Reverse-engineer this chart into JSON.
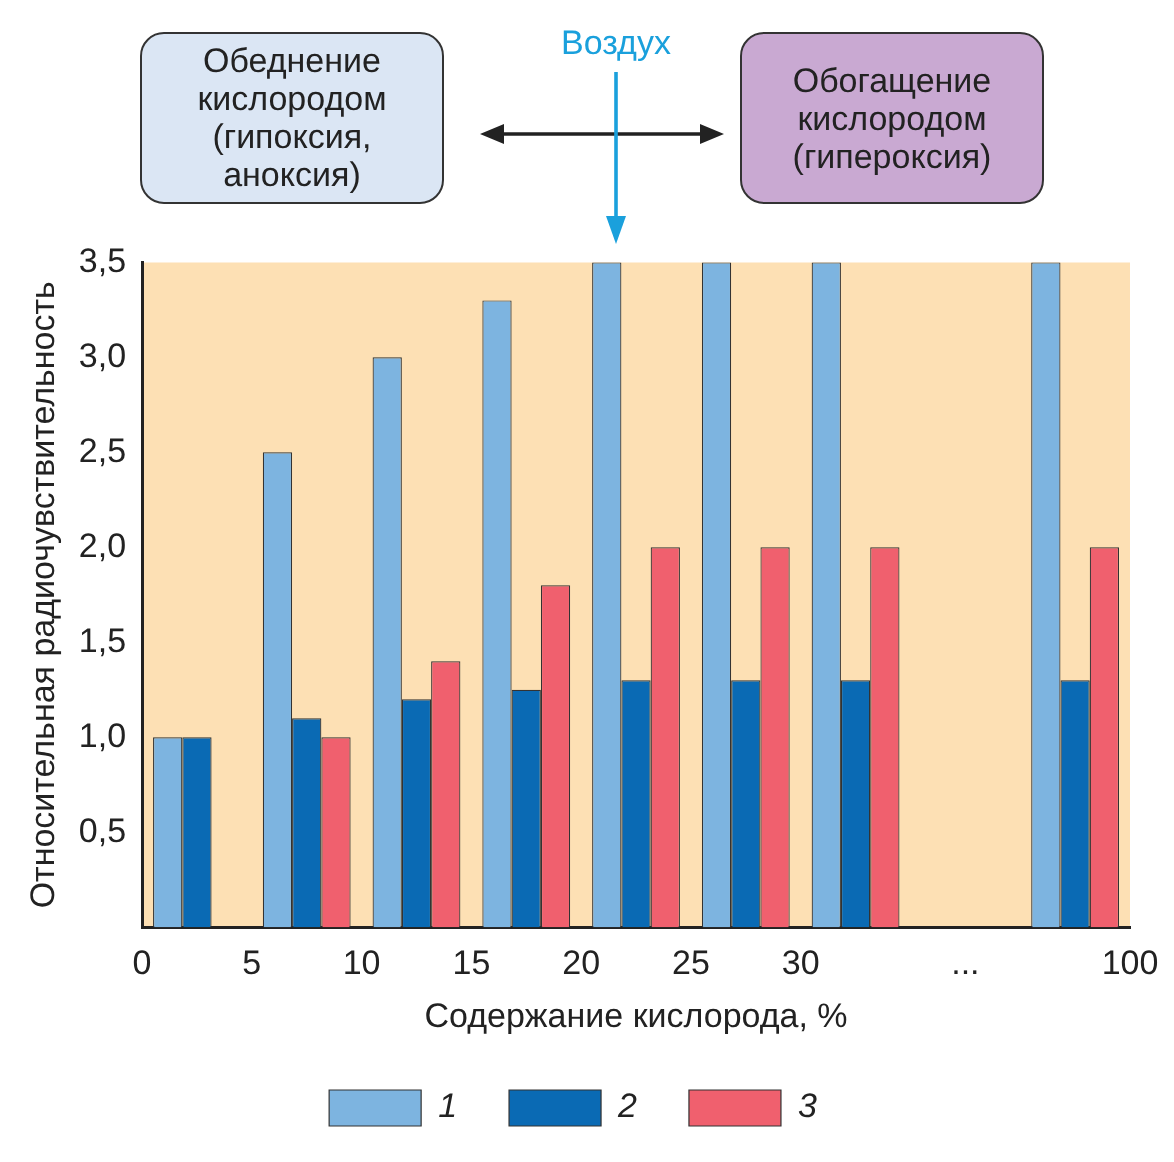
{
  "chart_data": {
    "type": "bar",
    "xlabel": "Содержание кислорода, %",
    "ylabel": "Относительная радиочувствительность",
    "annotations": [
      "Обеднение кислородом (гипоксия, аноксия)",
      "Воздух",
      "Обогащение кислородом (гипероксия)",
      "0",
      "5",
      "10",
      "15",
      "20",
      "25",
      "30",
      "...",
      "100"
    ],
    "categories": [
      null,
      null,
      null,
      null,
      null,
      null,
      null,
      null,
      null
    ],
    "series": [
      {
        "name": "1",
        "color": "#7db4e0",
        "values": [
          1.0,
          2.5,
          3.0,
          3.3,
          3.5,
          3.5,
          3.5,
          null,
          3.5
        ]
      },
      {
        "name": "2",
        "color": "#0a6ab4",
        "values": [
          1.0,
          1.1,
          1.2,
          1.25,
          1.3,
          1.3,
          1.3,
          null,
          1.3
        ]
      },
      {
        "name": "3",
        "color": "#f0606e",
        "values": [
          null,
          1.0,
          1.4,
          1.8,
          2.0,
          2.0,
          2.0,
          null,
          2.0
        ]
      }
    ],
    "ylim": [
      0,
      3.5
    ],
    "yticks": [
      {
        "value": 0.5,
        "label": "0,5"
      },
      {
        "value": 1,
        "label": "1,0"
      },
      {
        "value": 1.5,
        "label": "1,5"
      },
      {
        "value": 2,
        "label": "2,0"
      },
      {
        "value": 2.5,
        "label": "2,5"
      },
      {
        "value": 3,
        "label": "3,0"
      },
      {
        "value": 3.5,
        "label": "3,5"
      }
    ],
    "grid": false,
    "legend": "bottom"
  }
}
